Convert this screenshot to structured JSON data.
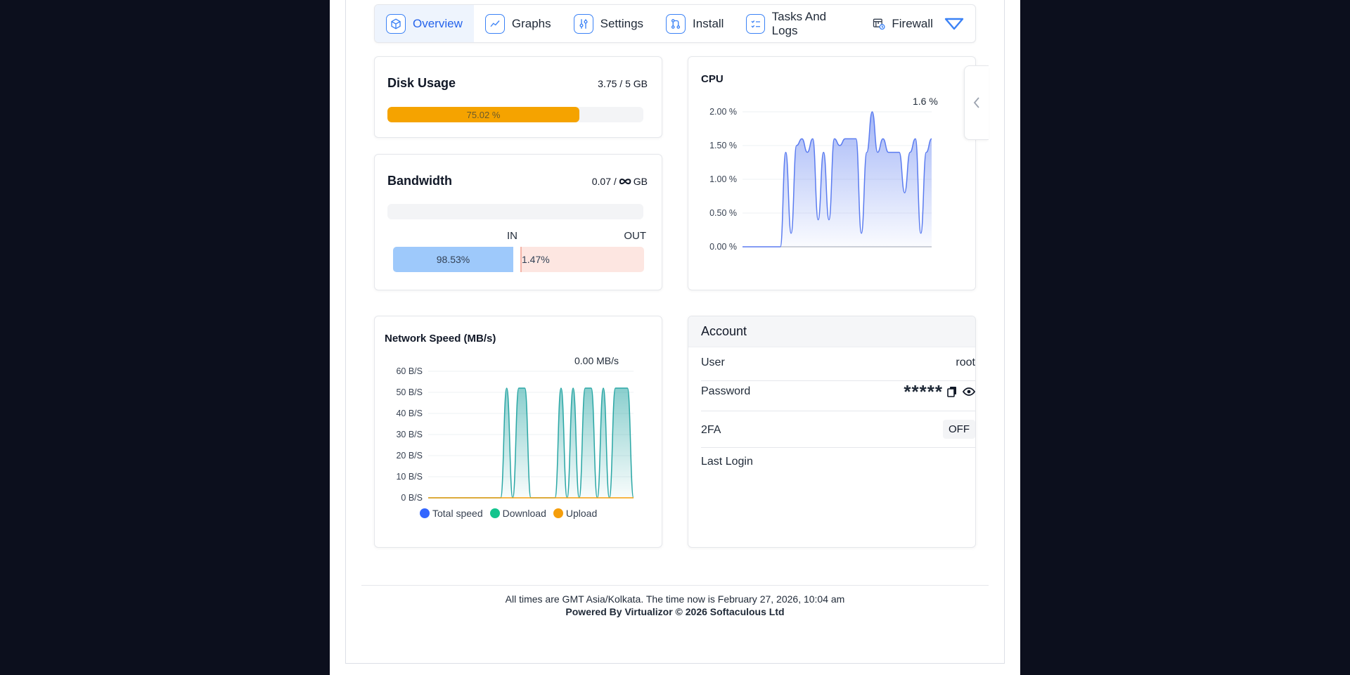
{
  "tabs": [
    {
      "label": "Overview",
      "icon": "cube-icon",
      "active": true
    },
    {
      "label": "Graphs",
      "icon": "line-chart-icon"
    },
    {
      "label": "Settings",
      "icon": "sliders-icon"
    },
    {
      "label": "Install",
      "icon": "git-branch-icon"
    },
    {
      "label": "Tasks And Logs",
      "icon": "checklist-icon"
    },
    {
      "label": "Firewall",
      "icon": "firewall-icon"
    }
  ],
  "disk": {
    "title": "Disk Usage",
    "value": "3.75 / 5 GB",
    "percent_label": "75.02 %",
    "percent": 75.02
  },
  "bandwidth": {
    "title": "Bandwidth",
    "value_prefix": "0.07 /",
    "value_suffix": "GB",
    "in_label": "IN",
    "out_label": "OUT",
    "in_percent_label": "98.53%",
    "out_percent_label": "1.47%",
    "in_percent": 98.53,
    "out_percent": 1.47,
    "used_percent": 0
  },
  "cpu": {
    "title": "CPU",
    "readout": "1.6 %"
  },
  "network": {
    "title": "Network Speed (MB/s)",
    "readout": "0.00 MB/s"
  },
  "account": {
    "title": "Account",
    "rows": {
      "user_label": "User",
      "user_value": "root",
      "password_label": "Password",
      "password_value": "*****",
      "twofa_label": "2FA",
      "twofa_value": "OFF",
      "last_login_label": "Last Login"
    }
  },
  "footer": {
    "time_note": "All times are GMT Asia/Kolkata. The time now is February 27, 2026, 10:04 am",
    "powered_by": "Powered By Virtualizor © 2026 Softaculous Ltd"
  },
  "colors": {
    "accent": "#2563eb",
    "disk_fill": "#f5a300",
    "cpu_line": "#5b7cf0",
    "net_line": "#2aa7a5",
    "upload_line": "#f59e0b",
    "total_dot": "#3366ff",
    "download_dot": "#13c48d",
    "upload_dot": "#f59e0b"
  },
  "chart_data": [
    {
      "type": "area",
      "title": "CPU",
      "ylabel": "",
      "ylim": [
        0,
        2
      ],
      "yticks": [
        "2.00 %",
        "1.50 %",
        "1.00 %",
        "0.50 %",
        "0.00 %"
      ],
      "ytick_values": [
        2,
        1.5,
        1,
        0.5,
        0
      ],
      "series": [
        {
          "values": [
            0,
            0,
            0,
            0,
            0,
            0,
            0,
            0,
            1.4,
            0.2,
            1.5,
            1.6,
            1.4,
            1.6,
            0.4,
            1.4,
            0.4,
            1.6,
            1.5,
            1.6,
            1.6,
            1.6,
            0.2,
            1.4,
            2.0,
            1.4,
            1.6,
            1.4,
            1.4,
            1.4,
            0.8,
            1.4,
            1.6,
            0.2,
            1.4,
            1.6
          ]
        }
      ]
    },
    {
      "type": "area",
      "title": "Network Speed (MB/s)",
      "ylim": [
        0,
        60
      ],
      "yticks": [
        "60 B/S",
        "50 B/S",
        "40 B/S",
        "30 B/S",
        "20 B/S",
        "10 B/S",
        "0 B/S"
      ],
      "ytick_values": [
        60,
        50,
        40,
        30,
        20,
        10,
        0
      ],
      "legend": [
        "Total speed",
        "Download",
        "Upload"
      ],
      "series": [
        {
          "name": "Download",
          "values": [
            0,
            0,
            0,
            0,
            0,
            0,
            0,
            0,
            0,
            0,
            0,
            0,
            0,
            52,
            0,
            52,
            52,
            0,
            0,
            0,
            0,
            0,
            52,
            0,
            52,
            0,
            52,
            52,
            0,
            52,
            0,
            52,
            52,
            52,
            0
          ]
        },
        {
          "name": "Upload",
          "values": [
            0,
            0,
            0,
            0,
            0,
            0,
            0,
            0,
            0,
            0,
            0,
            0,
            0,
            0,
            0,
            0,
            0,
            0,
            0,
            0,
            0,
            0,
            0,
            0,
            0,
            0,
            0,
            0,
            0,
            0,
            0,
            0,
            0,
            0,
            0
          ]
        }
      ]
    }
  ]
}
